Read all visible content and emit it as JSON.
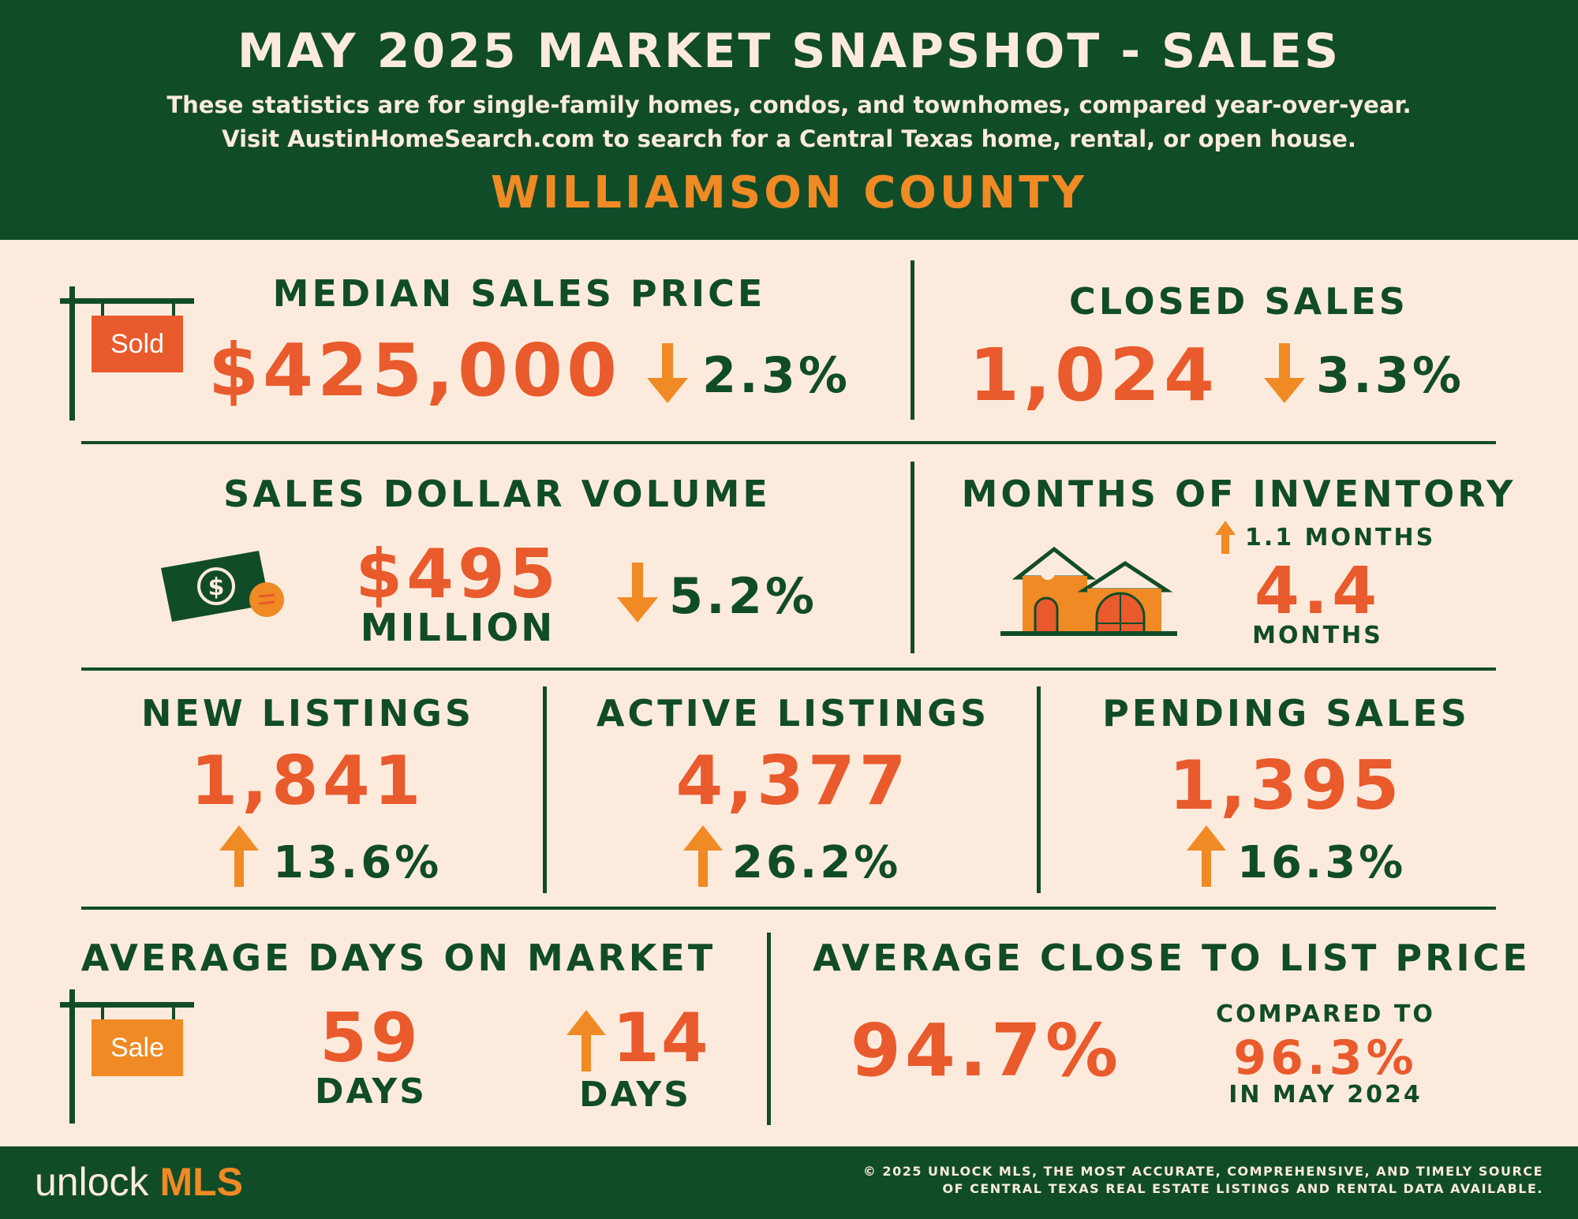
{
  "header": {
    "title": "MAY 2025 MARKET SNAPSHOT - SALES",
    "subtitle_line1": "These statistics are for single-family homes, condos, and townhomes, compared year-over-year.",
    "subtitle_line2": "Visit AustinHomeSearch.com to search for a Central Texas home, rental, or open house.",
    "county": "WILLIAMSON COUNTY"
  },
  "median_sales_price": {
    "label": "MEDIAN SALES PRICE",
    "value": "$425,000",
    "change": "2.3%",
    "direction": "down",
    "sign_text": "Sold"
  },
  "closed_sales": {
    "label": "CLOSED SALES",
    "value": "1,024",
    "change": "3.3%",
    "direction": "down"
  },
  "sales_dollar_volume": {
    "label": "SALES DOLLAR VOLUME",
    "value": "$495",
    "unit": "MILLION",
    "change": "5.2%",
    "direction": "down"
  },
  "months_of_inventory": {
    "label": "MONTHS OF INVENTORY",
    "change": "1.1  MONTHS",
    "direction": "up",
    "value": "4.4",
    "unit": "MONTHS"
  },
  "new_listings": {
    "label": "NEW LISTINGS",
    "value": "1,841",
    "change": "13.6%",
    "direction": "up"
  },
  "active_listings": {
    "label": "ACTIVE LISTINGS",
    "value": "4,377",
    "change": "26.2%",
    "direction": "up"
  },
  "pending_sales": {
    "label": "PENDING SALES",
    "value": "1,395",
    "change": "16.3%",
    "direction": "up"
  },
  "avg_days_on_market": {
    "label": "AVERAGE DAYS ON MARKET",
    "value": "59",
    "unit": "DAYS",
    "change": "14",
    "change_unit": "DAYS",
    "direction": "up",
    "sign_text": "Sale"
  },
  "avg_close_to_list": {
    "label": "AVERAGE CLOSE TO LIST PRICE",
    "value": "94.7%",
    "compare_prefix": "COMPARED TO",
    "compare_value": "96.3%",
    "compare_suffix": "IN MAY 2024"
  },
  "footer": {
    "brand_part1": "unlock",
    "brand_part2": "MLS",
    "note_line1": "© 2025 UNLOCK MLS, THE MOST ACCURATE, COMPREHENSIVE, AND TIMELY SOURCE",
    "note_line2": "OF CENTRAL TEXAS REAL ESTATE LISTINGS AND RENTAL DATA AVAILABLE."
  },
  "colors": {
    "green": "#114c28",
    "cream": "#fcebdd",
    "orange": "#f08a24",
    "red_orange": "#e95a2c"
  },
  "icons": [
    "sold-sign-icon",
    "money-icon",
    "house-icon",
    "sale-sign-icon",
    "arrow-down-icon",
    "arrow-up-icon"
  ]
}
